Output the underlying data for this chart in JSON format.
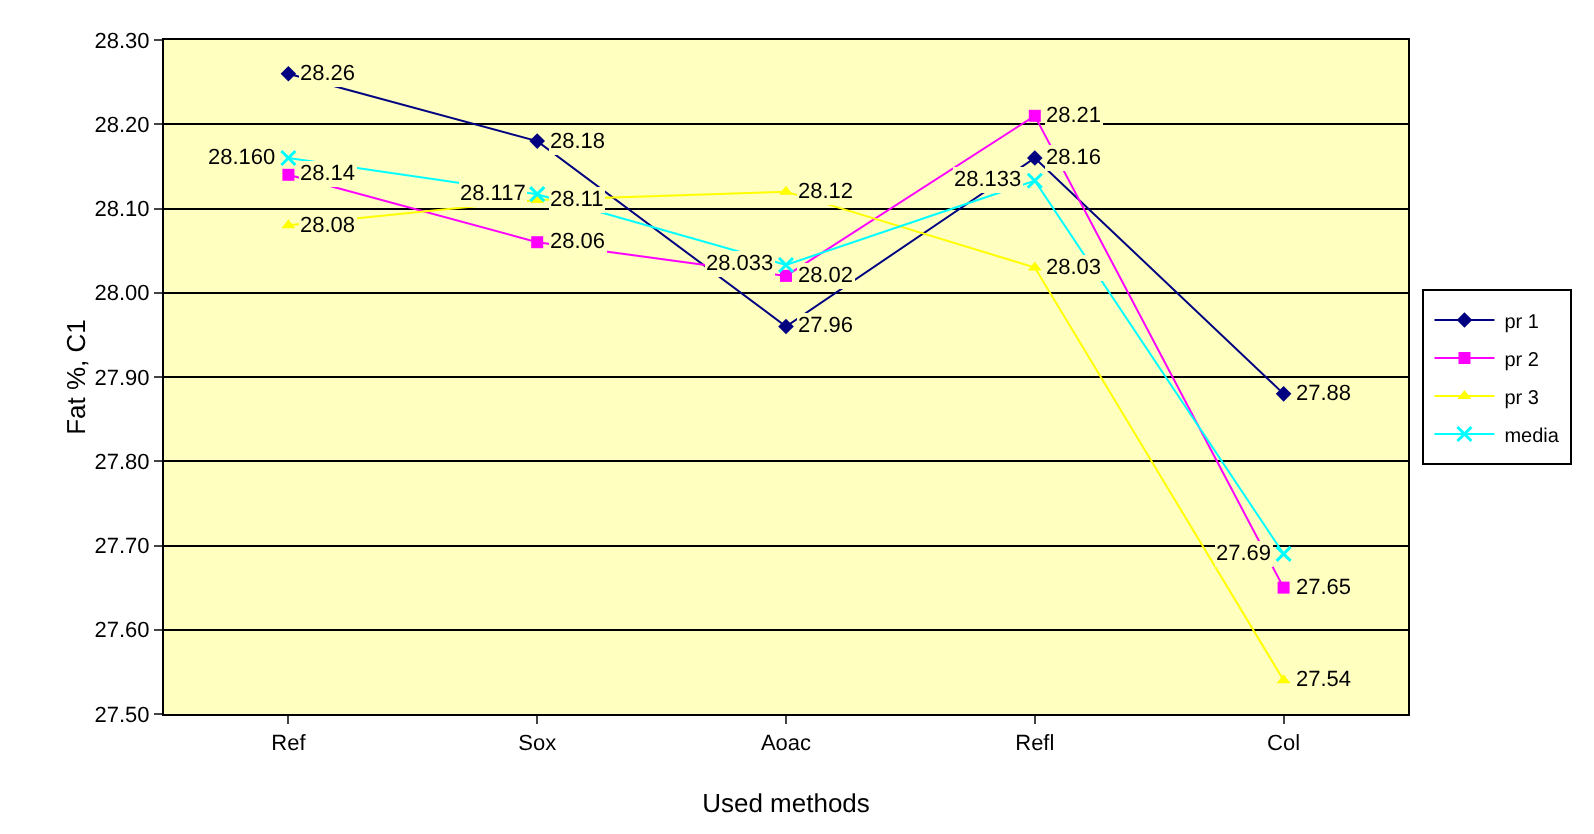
{
  "chart_data": {
    "type": "line",
    "xlabel": "Used methods",
    "ylabel": "Fat %, C1",
    "categories": [
      "Ref",
      "Sox",
      "Aoac",
      "Refl",
      "Col"
    ],
    "series": [
      {
        "name": "pr 1",
        "color": "#000080",
        "marker": "diamond",
        "values": [
          28.26,
          28.18,
          27.96,
          28.16,
          27.88
        ],
        "value_labels": [
          "28.26",
          "28.18",
          "27.96",
          "28.16",
          "27.88"
        ]
      },
      {
        "name": "pr 2",
        "color": "#ff00ff",
        "marker": "square",
        "values": [
          28.14,
          28.06,
          28.02,
          28.21,
          27.65
        ],
        "value_labels": [
          "28.14",
          "28.06",
          "28.02",
          "28.21",
          "27.65"
        ]
      },
      {
        "name": "pr 3",
        "color": "#ffff00",
        "marker": "triangle",
        "values": [
          28.08,
          28.11,
          28.12,
          28.03,
          27.54
        ],
        "value_labels": [
          "28.08",
          "28.11",
          "28.12",
          "28.03",
          "27.54"
        ]
      },
      {
        "name": "media",
        "color": "#00ffff",
        "marker": "cross",
        "values": [
          28.16,
          28.117,
          28.033,
          28.133,
          27.69
        ],
        "value_labels": [
          "28.160",
          "28.117",
          "28.033",
          "28.133",
          "27.69"
        ]
      }
    ],
    "ylim": [
      27.5,
      28.3
    ],
    "yticks": [
      {
        "value": 27.5,
        "label": "27.50"
      },
      {
        "value": 27.6,
        "label": "27.60"
      },
      {
        "value": 27.7,
        "label": "27.70"
      },
      {
        "value": 27.8,
        "label": "27.80"
      },
      {
        "value": 27.9,
        "label": "27.90"
      },
      {
        "value": 28.0,
        "label": "28.00"
      },
      {
        "value": 28.1,
        "label": "28.10"
      },
      {
        "value": 28.2,
        "label": "28.20"
      },
      {
        "value": 28.3,
        "label": "28.30"
      }
    ],
    "grid": "y",
    "legend": "right"
  }
}
